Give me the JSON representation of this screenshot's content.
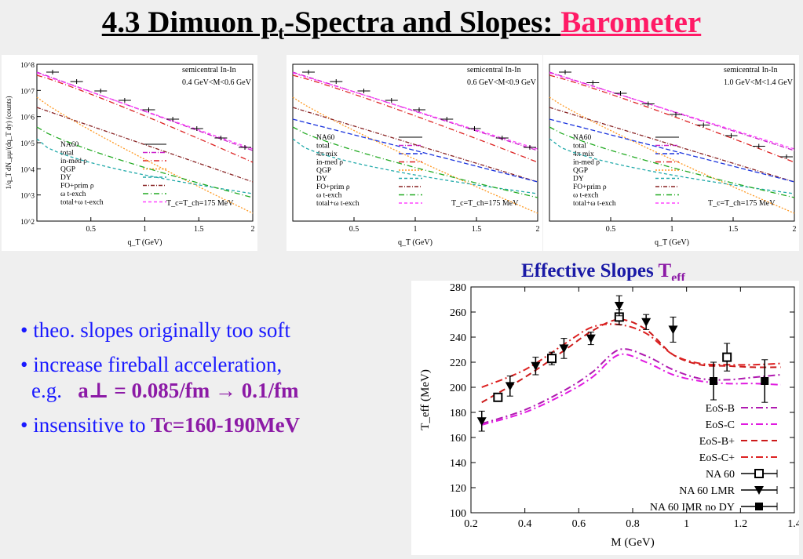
{
  "header": {
    "title_prefix": "4.3  Dimuon p",
    "title_sub": "t",
    "title_middle": "-Spectra and Slopes: ",
    "title_highlight": "Barometer"
  },
  "spectra": {
    "ylabel": "1/q_T dN_μμ/(dq_T dy) (counts)",
    "xlabel": "q_T (GeV)",
    "xticks": [
      "0.5",
      "1",
      "1.5",
      "2"
    ],
    "yticks": [
      "10^2",
      "10^3",
      "10^4",
      "10^5",
      "10^6",
      "10^7",
      "10^8"
    ],
    "tc_label": "T_c=T_ch=175 MeV",
    "panels": [
      {
        "header": "semicentral In-In",
        "range": "0.4 GeV<M<0.6 GeV",
        "legend": [
          "NA60",
          "total",
          "in-med ρ",
          "QGP",
          "DY",
          "FO+prim ρ",
          "ω t-exch",
          "total+ω t-exch"
        ]
      },
      {
        "header": "semicentral In-In",
        "range": "0.6 GeV<M<0.9 GeV",
        "legend": [
          "NA60",
          "total",
          "4π mix",
          "in-med ρ",
          "QGP",
          "DY",
          "FO+prim ρ",
          "ω t-exch",
          "total+ω t-exch"
        ]
      },
      {
        "header": "semicentral In-In",
        "range": "1.0 GeV<M<1.4 GeV",
        "legend": [
          "NA60",
          "total",
          "4π mix",
          "in-med ρ",
          "QGP",
          "DY",
          "FO+prim ρ",
          "ω t-exch",
          "total+ω t-exch"
        ]
      }
    ]
  },
  "bullets": {
    "b1": "• theo. slopes originally too soft",
    "b2": "• increase fireball acceleration,",
    "b2_eg": "e.g.",
    "b2_formula": "a⊥ = 0.085/fm → 0.1/fm",
    "b3_prefix": "• insensitive to ",
    "b3_value": "Tc=160-190MeV"
  },
  "slopes_title": {
    "main": "Effective Slopes ",
    "sym": "T",
    "sub": "eff"
  },
  "chart_data": {
    "type": "line",
    "xlabel": "M (GeV)",
    "ylabel": "T_eff (MeV)",
    "xlim": [
      0.2,
      1.4
    ],
    "ylim": [
      100,
      280
    ],
    "xticks": [
      "0.2",
      "0.4",
      "0.6",
      "0.8",
      "1",
      "1.2",
      "1.4"
    ],
    "yticks": [
      "100",
      "120",
      "140",
      "160",
      "180",
      "200",
      "220",
      "240",
      "260",
      "280"
    ],
    "legend_position": "bottom-right",
    "series": [
      {
        "name": "EoS-B",
        "color": "#b01ab0",
        "dash": "9 4 2 4",
        "x": [
          0.24,
          0.4,
          0.55,
          0.65,
          0.75,
          0.85,
          0.95,
          1.05,
          1.15,
          1.25,
          1.35
        ],
        "y": [
          171,
          182,
          198,
          212,
          230,
          225,
          214,
          207,
          206,
          208,
          210
        ]
      },
      {
        "name": "EoS-C",
        "color": "#e01ae0",
        "dash": "9 4 2 4",
        "x": [
          0.24,
          0.4,
          0.55,
          0.65,
          0.75,
          0.85,
          0.95,
          1.05,
          1.15,
          1.25,
          1.35
        ],
        "y": [
          170,
          180,
          195,
          208,
          226,
          220,
          210,
          205,
          203,
          203,
          202
        ]
      },
      {
        "name": "EoS-B+",
        "color": "#cc1a1a",
        "dash": "8 5",
        "x": [
          0.24,
          0.4,
          0.55,
          0.65,
          0.75,
          0.85,
          0.95,
          1.05,
          1.15,
          1.25,
          1.35
        ],
        "y": [
          188,
          208,
          230,
          245,
          254,
          246,
          226,
          218,
          217,
          216,
          216
        ]
      },
      {
        "name": "EoS-C+",
        "color": "#dd2222",
        "dash": "9 4 2 4",
        "x": [
          0.24,
          0.4,
          0.55,
          0.65,
          0.75,
          0.85,
          0.95,
          1.05,
          1.15,
          1.25,
          1.35
        ],
        "y": [
          200,
          214,
          235,
          248,
          250,
          243,
          226,
          219,
          218,
          218,
          219
        ]
      },
      {
        "name": "NA 60",
        "marker": "square-open",
        "x": [
          0.3,
          0.5,
          0.75,
          1.15
        ],
        "y": [
          192,
          223,
          256,
          224
        ],
        "err": [
          3,
          5,
          6,
          11
        ]
      },
      {
        "name": "NA 60 LMR",
        "marker": "triangle-down",
        "x": [
          0.24,
          0.345,
          0.44,
          0.545,
          0.645,
          0.75,
          0.85,
          0.95
        ],
        "y": [
          173,
          201,
          217,
          231,
          239,
          265,
          252,
          246
        ],
        "err": [
          8,
          8,
          7,
          8,
          5,
          8,
          6,
          10
        ]
      },
      {
        "name": "NA 60 IMR no DY",
        "marker": "square-filled",
        "x": [
          1.1,
          1.29
        ],
        "y": [
          205,
          205
        ],
        "err": [
          15,
          17
        ]
      }
    ]
  }
}
